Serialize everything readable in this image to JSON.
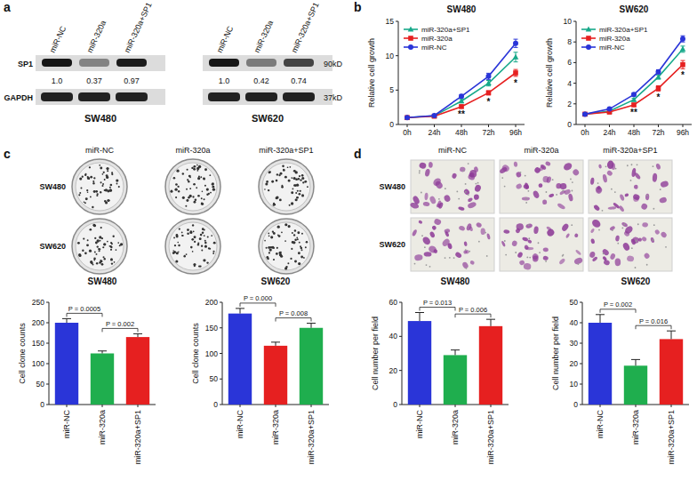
{
  "panel_labels": [
    "a",
    "b",
    "c",
    "d"
  ],
  "blot": {
    "lanes": [
      "miR-NC",
      "miR-320a",
      "miR-320a+SP1"
    ],
    "proteins": [
      {
        "name": "SP1",
        "size": "90kD"
      },
      {
        "name": "GAPDH",
        "size": "37kD"
      }
    ],
    "cell_lines": [
      {
        "name": "SW480",
        "sp1_values": [
          1,
          0.37,
          0.97
        ],
        "sp1_value_labels": [
          "1.0",
          "0.37",
          "0.97"
        ]
      },
      {
        "name": "SW620",
        "sp1_values": [
          1,
          0.42,
          0.74
        ],
        "sp1_value_labels": [
          "1.0",
          "0.42",
          "0.74"
        ]
      }
    ]
  },
  "colony_images": {
    "columns": [
      "miR-NC",
      "miR-320a",
      "miR-320a+SP1"
    ],
    "rows": [
      "SW480",
      "SW620"
    ]
  },
  "transwell_images": {
    "columns": [
      "miR-NC",
      "miR-320a",
      "miR-320a+SP1"
    ],
    "rows": [
      "SW480",
      "SW620"
    ]
  },
  "chart_data": [
    {
      "type": "line",
      "title": "SW480",
      "y_label": "Relative cell growth",
      "categories": [
        "0h",
        "24h",
        "48h",
        "72h",
        "96h"
      ],
      "ylim": [
        0,
        15
      ],
      "yticks": [
        0,
        5,
        10,
        15
      ],
      "legend": "upper left",
      "series": [
        {
          "name": "miR-320a+SP1",
          "color": "#17a98a",
          "marker": "triangle",
          "values": [
            1,
            1.25,
            3.4,
            6.0,
            9.8
          ],
          "errors": [
            0.05,
            0.08,
            0.25,
            0.4,
            0.7
          ]
        },
        {
          "name": "miR-320a",
          "color": "#e62020",
          "marker": "square",
          "values": [
            1,
            1.2,
            2.6,
            4.6,
            7.5
          ],
          "errors": [
            0.05,
            0.08,
            0.2,
            0.3,
            0.5
          ]
        },
        {
          "name": "miR-NC",
          "color": "#2a35d8",
          "marker": "circle",
          "values": [
            1,
            1.3,
            4.1,
            7.0,
            11.8
          ],
          "errors": [
            0.05,
            0.1,
            0.25,
            0.45,
            0.6
          ]
        }
      ],
      "annotations": [
        {
          "category": "48h",
          "text": "**"
        },
        {
          "category": "72h",
          "text": "*"
        },
        {
          "category": "96h",
          "text": "*"
        }
      ]
    },
    {
      "type": "line",
      "title": "SW620",
      "y_label": "Relative cell growth",
      "categories": [
        "0h",
        "24h",
        "48h",
        "72h",
        "96h"
      ],
      "ylim": [
        0,
        10
      ],
      "yticks": [
        0,
        2,
        4,
        6,
        8,
        10
      ],
      "legend": "upper left",
      "series": [
        {
          "name": "miR-320a+SP1",
          "color": "#17a98a",
          "marker": "triangle",
          "values": [
            1,
            1.3,
            2.4,
            4.6,
            7.3
          ],
          "errors": [
            0.05,
            0.08,
            0.15,
            0.2,
            0.3
          ]
        },
        {
          "name": "miR-320a",
          "color": "#e62020",
          "marker": "square",
          "values": [
            1,
            1.2,
            1.9,
            3.5,
            5.8
          ],
          "errors": [
            0.05,
            0.08,
            0.12,
            0.25,
            0.4
          ]
        },
        {
          "name": "miR-NC",
          "color": "#2a35d8",
          "marker": "circle",
          "values": [
            1,
            1.5,
            2.9,
            5.1,
            8.3
          ],
          "errors": [
            0.05,
            0.08,
            0.15,
            0.2,
            0.3
          ]
        }
      ],
      "annotations": [
        {
          "category": "48h",
          "text": "**"
        },
        {
          "category": "72h",
          "text": "*"
        },
        {
          "category": "96h",
          "text": "*"
        }
      ]
    },
    {
      "type": "bar",
      "title": "SW480",
      "y_label": "Cell clone counts",
      "categories": [
        "miR-NC",
        "miR-320a",
        "miR-320a+SP1"
      ],
      "values": [
        200,
        125,
        165
      ],
      "errors": [
        10,
        6,
        8
      ],
      "colors": [
        "#2a35d8",
        "#1fae4e",
        "#e62020"
      ],
      "ylim": [
        0,
        250
      ],
      "yticks": [
        0,
        50,
        100,
        150,
        200,
        250
      ],
      "comparisons": [
        {
          "from": "miR-NC",
          "to": "miR-320a",
          "label": "P = 0.0005"
        },
        {
          "from": "miR-320a",
          "to": "miR-320a+SP1",
          "label": "P = 0.002"
        }
      ]
    },
    {
      "type": "bar",
      "title": "SW620",
      "y_label": "Cell clone counts",
      "categories": [
        "miR-NC",
        "miR-320a",
        "miR-320a+SP1"
      ],
      "values": [
        178,
        115,
        150
      ],
      "errors": [
        10,
        7,
        9
      ],
      "colors": [
        "#2a35d8",
        "#e62020",
        "#1fae4e"
      ],
      "ylim": [
        0,
        200
      ],
      "yticks": [
        0,
        50,
        100,
        150,
        200
      ],
      "comparisons": [
        {
          "from": "miR-NC",
          "to": "miR-320a",
          "label": "P = 0.000"
        },
        {
          "from": "miR-320a",
          "to": "miR-320a+SP1",
          "label": "P = 0.008"
        }
      ]
    },
    {
      "type": "bar",
      "title": "SW480",
      "y_label": "Cell number per field",
      "categories": [
        "miR-NC",
        "miR-320a",
        "miR-320a+SP1"
      ],
      "values": [
        49,
        29,
        46
      ],
      "errors": [
        5,
        3,
        4
      ],
      "colors": [
        "#2a35d8",
        "#1fae4e",
        "#e62020"
      ],
      "ylim": [
        0,
        60
      ],
      "yticks": [
        0,
        20,
        40,
        60
      ],
      "comparisons": [
        {
          "from": "miR-NC",
          "to": "miR-320a",
          "label": "P = 0.013"
        },
        {
          "from": "miR-320a",
          "to": "miR-320a+SP1",
          "label": "P = 0.006"
        }
      ]
    },
    {
      "type": "bar",
      "title": "SW620",
      "y_label": "Cell number per field",
      "categories": [
        "miR-NC",
        "miR-320a",
        "miR-320a+SP1"
      ],
      "values": [
        40,
        19,
        32
      ],
      "errors": [
        4,
        3,
        4
      ],
      "colors": [
        "#2a35d8",
        "#1fae4e",
        "#e62020"
      ],
      "ylim": [
        0,
        50
      ],
      "yticks": [
        0,
        10,
        20,
        30,
        40,
        50
      ],
      "comparisons": [
        {
          "from": "miR-NC",
          "to": "miR-320a",
          "label": "P = 0.002"
        },
        {
          "from": "miR-320a",
          "to": "miR-320a+SP1",
          "label": "P = 0.016"
        }
      ]
    }
  ]
}
